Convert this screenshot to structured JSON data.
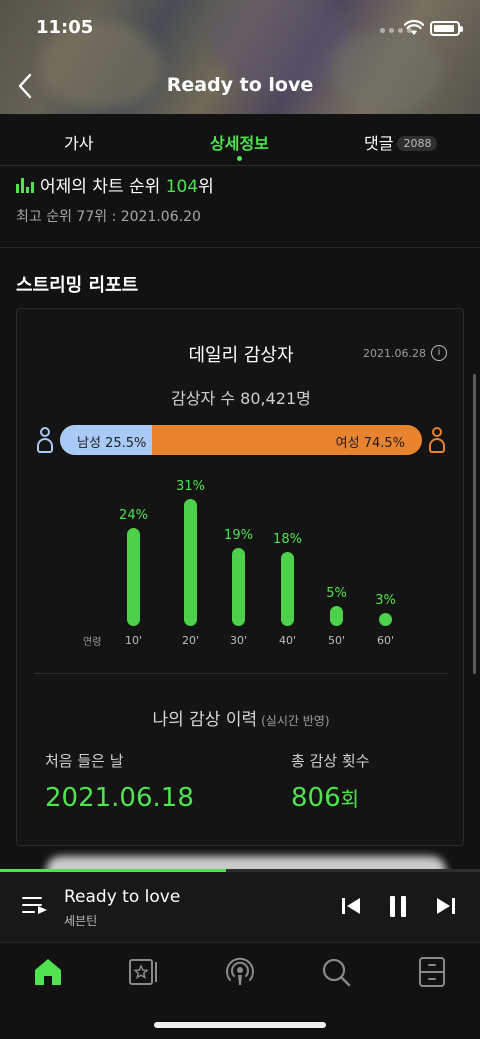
{
  "status_bar": {
    "time": "11:05"
  },
  "header": {
    "title": "Ready to love"
  },
  "tabs": [
    {
      "label": "가사"
    },
    {
      "label": "상세정보",
      "active": true
    },
    {
      "label": "댓글",
      "badge": "2088"
    }
  ],
  "chart_rank": {
    "prefix": "어제의 차트 순위",
    "rank": "104",
    "suffix": "위",
    "best": "최고 순위 77위 : 2021.06.20"
  },
  "streaming_report": {
    "section_title": "스트리밍 리포트",
    "card_title": "데일리 감상자",
    "date": "2021.06.28",
    "listeners": "감상자 수 80,421명",
    "gender": {
      "male_label": "남성 25.5%",
      "female_label": "여성 74.5%",
      "male_share": 25.5,
      "male_color": "#a9c9f7",
      "female_color": "#e9832f"
    },
    "age_axis_label": "연령",
    "age_groups": [
      {
        "label": "10'",
        "pct_label": "24%",
        "value": 24
      },
      {
        "label": "20'",
        "pct_label": "31%",
        "value": 31
      },
      {
        "label": "30'",
        "pct_label": "19%",
        "value": 19
      },
      {
        "label": "40'",
        "pct_label": "18%",
        "value": 18
      },
      {
        "label": "50'",
        "pct_label": "5%",
        "value": 5
      },
      {
        "label": "60'",
        "pct_label": "3%",
        "value": 3
      }
    ]
  },
  "history": {
    "title": "나의 감상 이력",
    "subtitle": "(실시간 반영)",
    "first_label": "처음 들은 날",
    "first_date": "2021.06.18",
    "count_label": "총 감상 횟수",
    "count": "806",
    "count_unit": "회"
  },
  "player": {
    "title": "Ready to love",
    "artist": "세븐틴",
    "progress": 0.47
  },
  "bottom_nav": [
    {
      "icon": "home-icon",
      "active": true
    },
    {
      "icon": "library-icon"
    },
    {
      "icon": "podcast-icon"
    },
    {
      "icon": "search-icon"
    },
    {
      "icon": "locker-icon"
    }
  ],
  "colors": {
    "accent": "#4ee34f",
    "background": "#121212"
  }
}
